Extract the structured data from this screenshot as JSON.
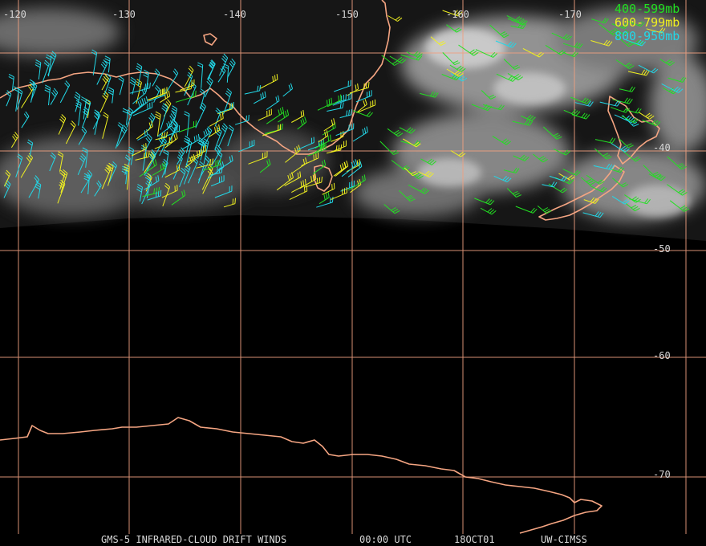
{
  "map": {
    "longitude_labels": [
      "-120",
      "-130",
      "-140",
      "-150",
      "-160",
      "-170"
    ],
    "latitude_labels": [
      "-40",
      "-50",
      "-60",
      "-70"
    ],
    "legend": [
      {
        "label": "400-599mb",
        "color": "#22e022"
      },
      {
        "label": "600-799mb",
        "color": "#f0f020"
      },
      {
        "label": "800-950mb",
        "color": "#22d8e8"
      }
    ],
    "footer": {
      "product": "GMS-5 INFRARED-CLOUD DRIFT WINDS",
      "time": "00:00 UTC",
      "date": "18OCT01",
      "source": "UW-CIMSS"
    },
    "colors": {
      "background": "#000000",
      "grid": "#f0a080",
      "coastline": "#f5a582",
      "cloud": "#b8b8b8"
    }
  }
}
